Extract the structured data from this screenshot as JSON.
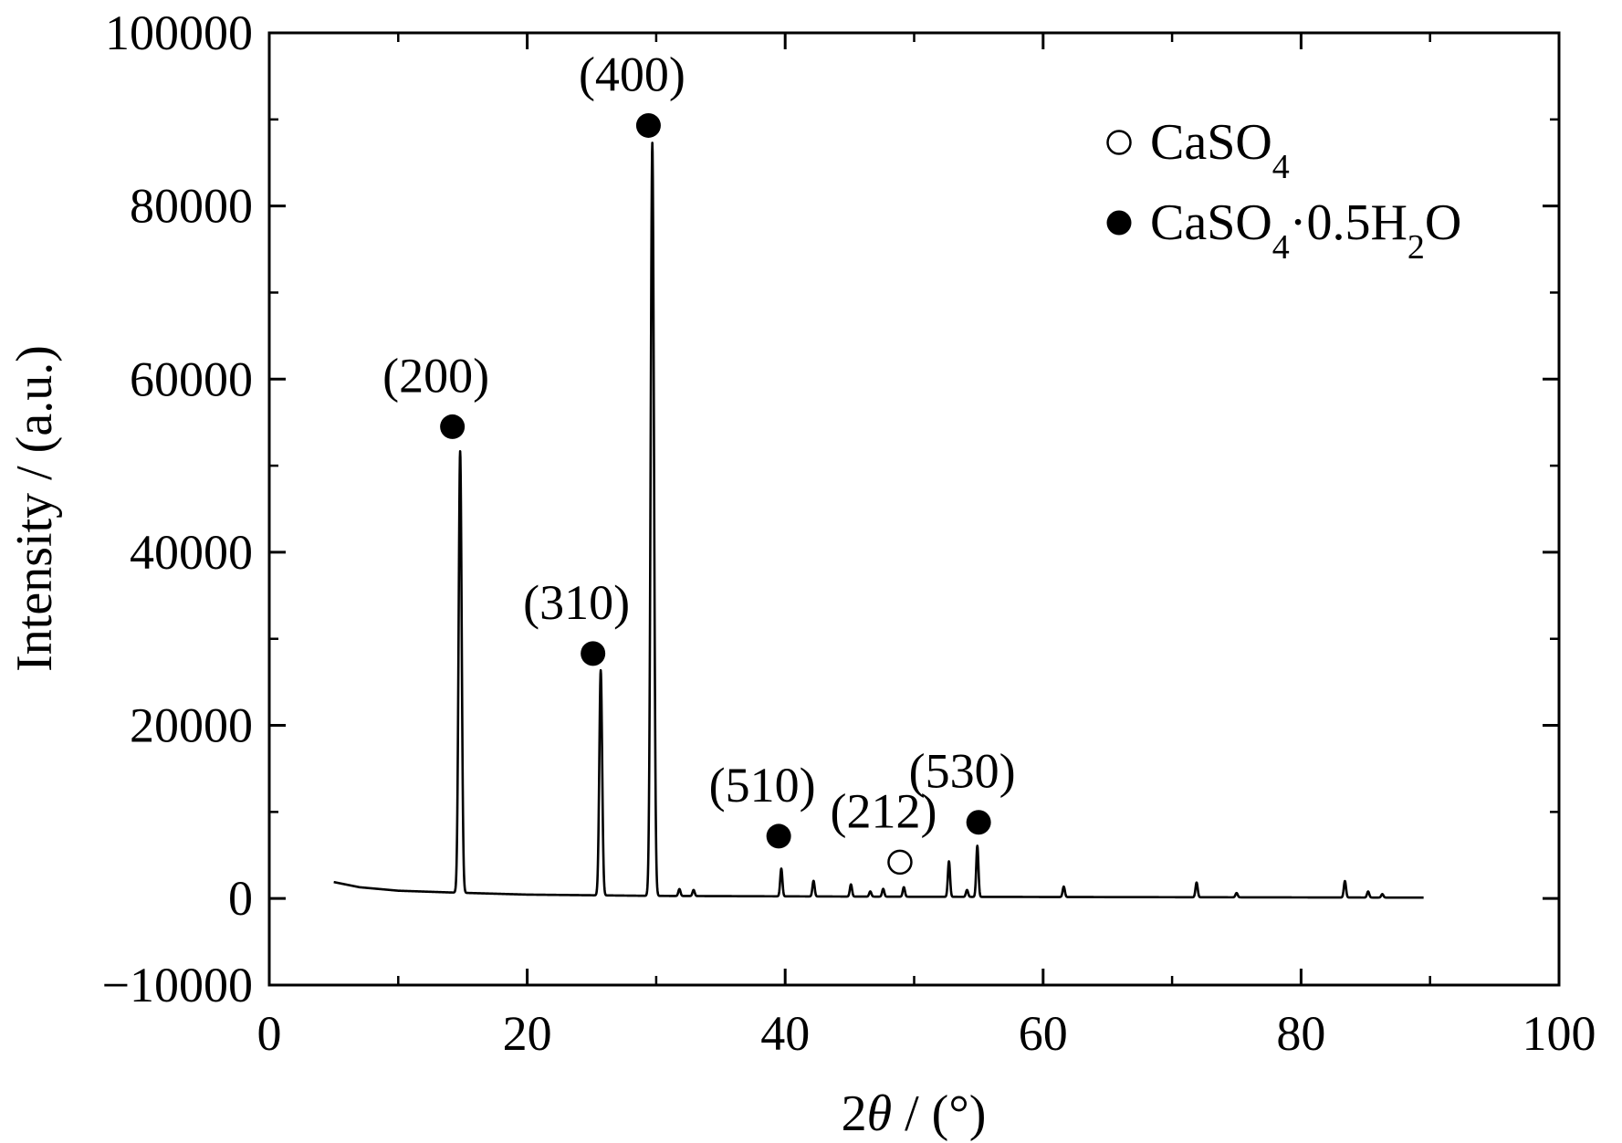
{
  "chart_data": {
    "type": "line",
    "xlabel_prefix": "2",
    "xlabel_symbol": "θ",
    "xlabel_suffix": " / (°)",
    "ylabel": "Intensity / (a.u.)",
    "xlim": [
      0,
      100
    ],
    "ylim": [
      -10000,
      100000
    ],
    "x_ticks": [
      0,
      20,
      40,
      60,
      80,
      100
    ],
    "y_ticks": [
      -10000,
      0,
      20000,
      40000,
      60000,
      80000,
      100000
    ],
    "x_tick_labels": [
      "0",
      "20",
      "40",
      "60",
      "80",
      "100"
    ],
    "y_tick_labels": [
      "−10000",
      "0",
      "20000",
      "40000",
      "60000",
      "80000",
      "100000"
    ],
    "grid": false,
    "legend_position": "top-right",
    "legend": [
      {
        "marker": "open-circle",
        "base": "CaSO",
        "sub1": "4",
        "mid": "",
        "sub2": "",
        "tail": ""
      },
      {
        "marker": "filled-circle",
        "base": "CaSO",
        "sub1": "4",
        "mid": "·0.5H",
        "sub2": "2",
        "tail": "O"
      }
    ],
    "baseline": [
      [
        5,
        1900
      ],
      [
        7,
        1300
      ],
      [
        10,
        900
      ],
      [
        14,
        700
      ],
      [
        20,
        450
      ],
      [
        30,
        300
      ],
      [
        50,
        200
      ],
      [
        70,
        150
      ],
      [
        89.5,
        100
      ]
    ],
    "peaks": [
      {
        "x": 14.8,
        "y": 51000,
        "width": 0.28
      },
      {
        "x": 25.7,
        "y": 26000,
        "width": 0.26
      },
      {
        "x": 29.7,
        "y": 87000,
        "width": 0.3
      },
      {
        "x": 31.8,
        "y": 800,
        "width": 0.2
      },
      {
        "x": 32.9,
        "y": 700,
        "width": 0.2
      },
      {
        "x": 39.7,
        "y": 3200,
        "width": 0.2
      },
      {
        "x": 42.2,
        "y": 1800,
        "width": 0.2
      },
      {
        "x": 45.1,
        "y": 1400,
        "width": 0.2
      },
      {
        "x": 46.6,
        "y": 600,
        "width": 0.2
      },
      {
        "x": 47.6,
        "y": 900,
        "width": 0.2
      },
      {
        "x": 49.2,
        "y": 1100,
        "width": 0.2
      },
      {
        "x": 52.7,
        "y": 4100,
        "width": 0.2
      },
      {
        "x": 54.1,
        "y": 800,
        "width": 0.2
      },
      {
        "x": 54.9,
        "y": 5900,
        "width": 0.2
      },
      {
        "x": 61.6,
        "y": 1200,
        "width": 0.2
      },
      {
        "x": 71.9,
        "y": 1700,
        "width": 0.2
      },
      {
        "x": 75.0,
        "y": 500,
        "width": 0.2
      },
      {
        "x": 83.4,
        "y": 1900,
        "width": 0.2
      },
      {
        "x": 85.2,
        "y": 700,
        "width": 0.2
      },
      {
        "x": 86.3,
        "y": 400,
        "width": 0.2
      }
    ],
    "annotations": [
      {
        "label": "(200)",
        "x": 14.2,
        "y": 54500,
        "marker": "filled-circle"
      },
      {
        "label": "(310)",
        "x": 25.1,
        "y": 28300,
        "marker": "filled-circle"
      },
      {
        "label": "(400)",
        "x": 29.4,
        "y": 89300,
        "marker": "filled-circle"
      },
      {
        "label": "(510)",
        "x": 39.5,
        "y": 7200,
        "marker": "filled-circle"
      },
      {
        "label": "(212)",
        "x": 48.9,
        "y": 4200,
        "marker": "open-circle"
      },
      {
        "label": "(530)",
        "x": 55.0,
        "y": 8800,
        "marker": "filled-circle"
      }
    ]
  }
}
